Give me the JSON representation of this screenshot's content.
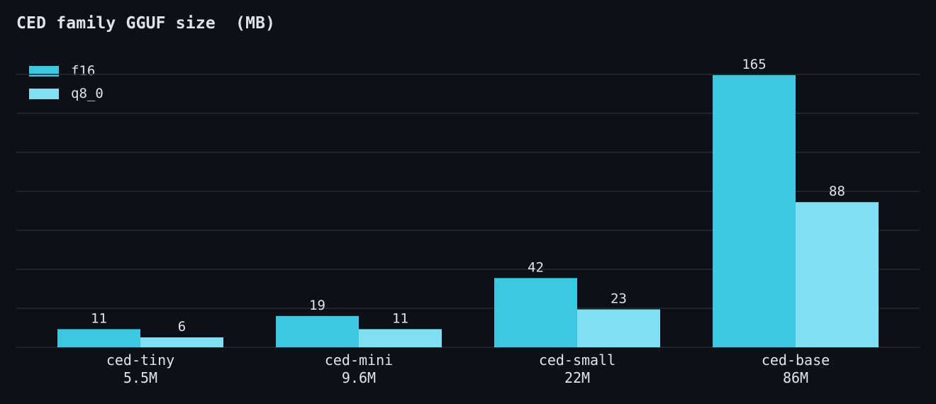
{
  "chart_data": {
    "type": "bar",
    "title": "CED family GGUF size  (MB)",
    "xlabel": "",
    "ylabel": "",
    "ylim": [
      0,
      175
    ],
    "grid": true,
    "legend_position": "top-left",
    "categories": [
      {
        "name": "ced-tiny",
        "params": "5.5M"
      },
      {
        "name": "ced-mini",
        "params": "9.6M"
      },
      {
        "name": "ced-small",
        "params": "22M"
      },
      {
        "name": "ced-base",
        "params": "86M"
      }
    ],
    "series": [
      {
        "name": "f16",
        "color": "#3cc8e0",
        "values": [
          11,
          19,
          42,
          165
        ]
      },
      {
        "name": "q8_0",
        "color": "#80dff0",
        "values": [
          6,
          11,
          23,
          88
        ]
      }
    ]
  },
  "colors": {
    "background": "#0d1017",
    "grid": "#262b33",
    "text": "#dfe4ea"
  }
}
